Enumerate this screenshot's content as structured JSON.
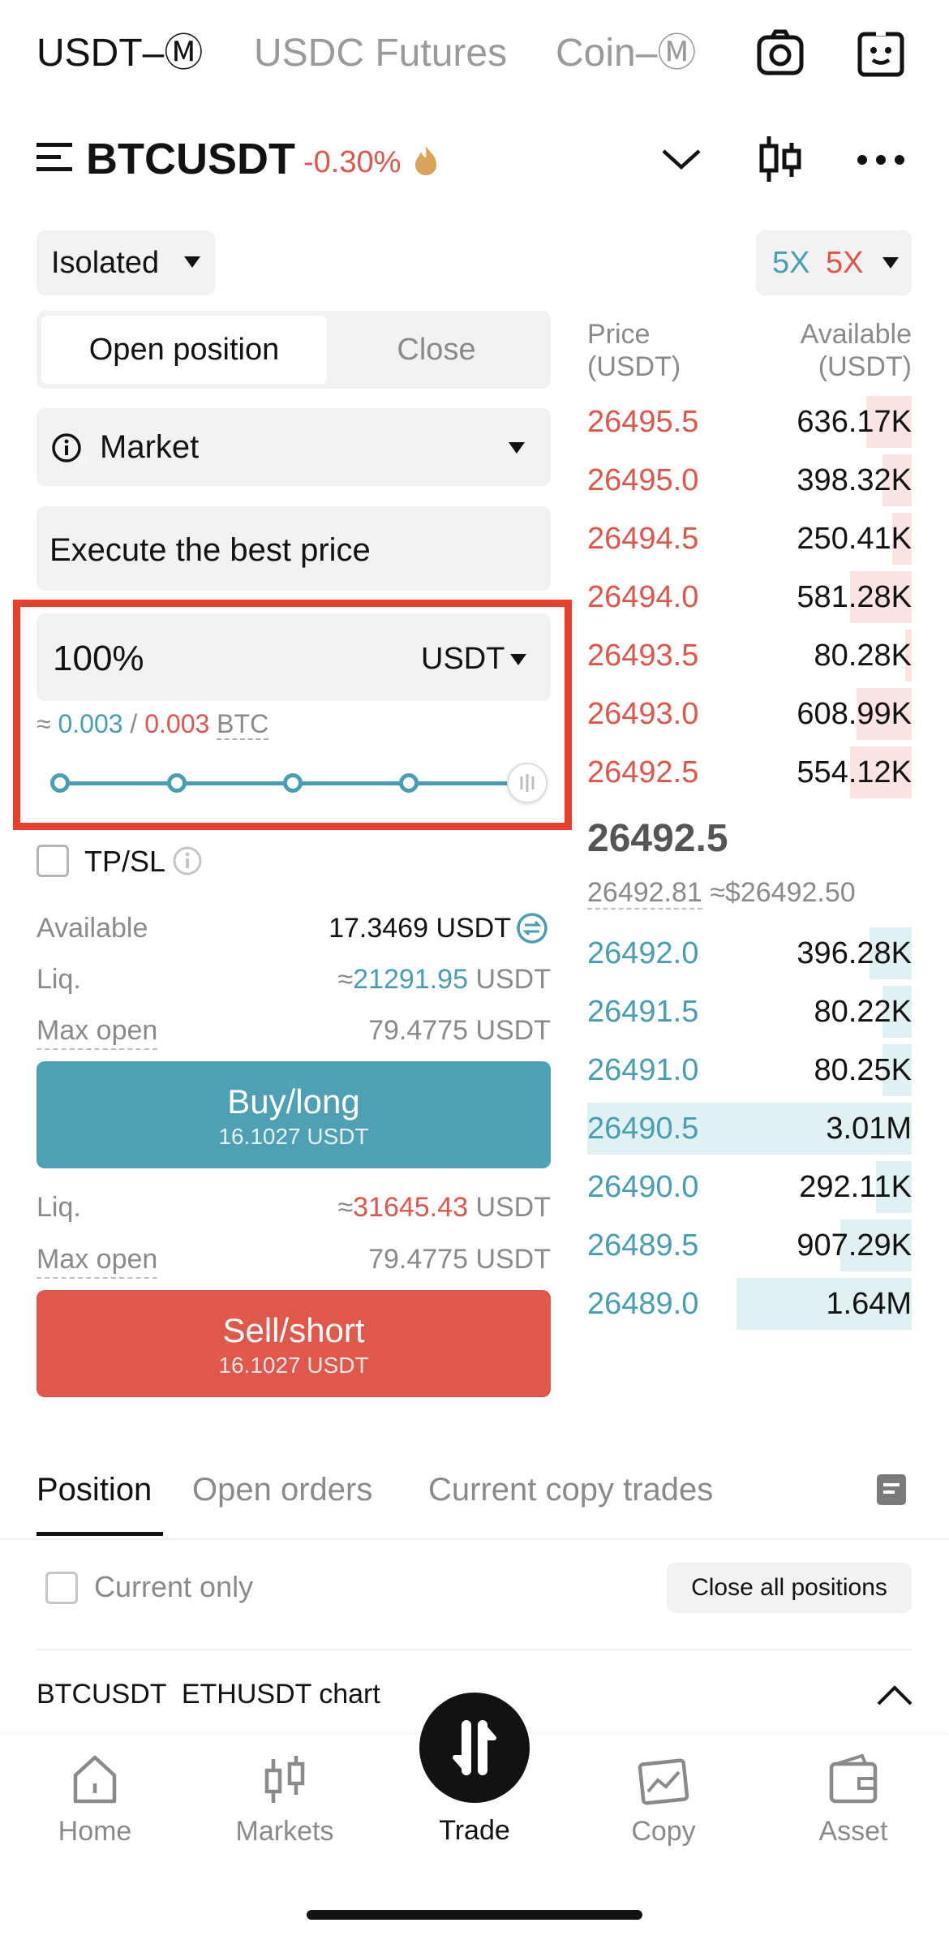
{
  "header": {
    "tabs": [
      {
        "label": "USDT–Ⓜ"
      },
      {
        "label": "USDC Futures"
      },
      {
        "label": "Coin–Ⓜ"
      }
    ]
  },
  "pair": {
    "symbol": "BTCUSDT",
    "change": "-0.30%"
  },
  "margin_mode": {
    "label": "Isolated"
  },
  "leverage": {
    "long": "5X",
    "short": "5X"
  },
  "position_tabs": {
    "open": "Open position",
    "close": "Close"
  },
  "order_type": {
    "label": "Market"
  },
  "price_field": {
    "value": "Execute the best price"
  },
  "amount": {
    "value": "100%",
    "unit": "USDT",
    "approx_prefix": "≈",
    "long_qty": "0.003",
    "separator": "/",
    "short_qty": "0.003",
    "qty_unit": "BTC",
    "slider_fraction": 1.0
  },
  "tpsl": {
    "label": "TP/SL"
  },
  "info": {
    "available_label": "Available",
    "available_value": "17.3469 USDT",
    "liq_label": "Liq.",
    "long_liq_prefix": "≈",
    "long_liq_value": "21291.95",
    "liq_unit": "USDT",
    "max_open_label": "Max open",
    "max_open_value": "79.4775 USDT",
    "short_liq_prefix": "≈",
    "short_liq_value": "31645.43"
  },
  "buy": {
    "label": "Buy/long",
    "amount": "16.1027 USDT"
  },
  "sell": {
    "label": "Sell/short",
    "amount": "16.1027 USDT"
  },
  "orderbook": {
    "price_header": "Price",
    "price_unit": "(USDT)",
    "avail_header": "Available",
    "avail_unit": "(USDT)",
    "asks": [
      {
        "price": "26495.5",
        "amount": "636.17K",
        "depth": 0.14
      },
      {
        "price": "26495.0",
        "amount": "398.32K",
        "depth": 0.09
      },
      {
        "price": "26494.5",
        "amount": "250.41K",
        "depth": 0.06
      },
      {
        "price": "26494.0",
        "amount": "581.28K",
        "depth": 0.19
      },
      {
        "price": "26493.5",
        "amount": "80.28K",
        "depth": 0.02
      },
      {
        "price": "26493.0",
        "amount": "608.99K",
        "depth": 0.17
      },
      {
        "price": "26492.5",
        "amount": "554.12K",
        "depth": 0.19
      }
    ],
    "last_price": "26492.5",
    "mark_price": "26492.81",
    "usd_price": "≈$26492.50",
    "bids": [
      {
        "price": "26492.0",
        "amount": "396.28K",
        "depth": 0.13
      },
      {
        "price": "26491.5",
        "amount": "80.22K",
        "depth": 0.09
      },
      {
        "price": "26491.0",
        "amount": "80.25K",
        "depth": 0.09
      },
      {
        "price": "26490.5",
        "amount": "3.01M",
        "depth": 1.0
      },
      {
        "price": "26490.0",
        "amount": "292.11K",
        "depth": 0.11
      },
      {
        "price": "26489.5",
        "amount": "907.29K",
        "depth": 0.22
      },
      {
        "price": "26489.0",
        "amount": "1.64M",
        "depth": 0.54
      }
    ]
  },
  "bottom_tabs": {
    "position": "Position",
    "open_orders": "Open orders",
    "copy_trades": "Current copy trades"
  },
  "current_only": {
    "label": "Current only"
  },
  "close_all": {
    "label": "Close all positions"
  },
  "chart_strip": {
    "label": "BTCUSDT  ETHUSDT chart"
  },
  "nav": {
    "home": "Home",
    "markets": "Markets",
    "trade": "Trade",
    "copy": "Copy",
    "asset": "Asset"
  },
  "colors": {
    "buy": "#4fa0b3",
    "sell": "#e0574b",
    "highlight": "#e8402a"
  }
}
